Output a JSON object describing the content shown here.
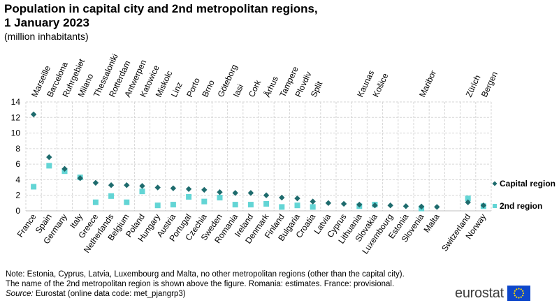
{
  "header": {
    "title_line1": "Population in capital city and 2nd metropolitan regions,",
    "title_line2": "1 January 2023",
    "subtitle": "(million inhabitants)"
  },
  "chart_data": {
    "type": "scatter",
    "categories": [
      "France",
      "Spain",
      "Germany",
      "Italy",
      "Greece",
      "Netherlands",
      "Belgium",
      "Poland",
      "Hungary",
      "Austria",
      "Portugal",
      "Czechia",
      "Sweden",
      "Romania",
      "Ireland",
      "Denmark",
      "Finland",
      "Bulgaria",
      "Croatia",
      "Latvia",
      "Cyprus",
      "Lithuania",
      "Slovakia",
      "Luxembourg",
      "Estonia",
      "Slovenia",
      "Malta",
      "",
      "Switzerland",
      "Norway"
    ],
    "second_region_names": [
      "Marseille",
      "Barcelona",
      "Ruhrgebiet",
      "Milano",
      "Thessaloniki",
      "Rotterdam",
      "Antwerpen",
      "Katowice",
      "Miskolc",
      "Linz",
      "Porto",
      "Brno",
      "Göteborg",
      "Iasi",
      "Cork",
      "Århus",
      "Tampere",
      "Plovdiv",
      "Split",
      "",
      "",
      "Kaunas",
      "Košice",
      "",
      "",
      "Maribor",
      "",
      "",
      "Zürich",
      "Bergen"
    ],
    "series": [
      {
        "name": "Capital region",
        "marker": "diamond",
        "color": "#1e6b6d",
        "values": [
          12.4,
          6.9,
          5.4,
          4.2,
          3.6,
          3.3,
          3.3,
          3.2,
          3.0,
          2.9,
          2.8,
          2.7,
          2.4,
          2.3,
          2.3,
          2.0,
          1.7,
          1.6,
          1.2,
          1.0,
          0.9,
          0.8,
          0.7,
          0.7,
          0.6,
          0.55,
          0.5,
          null,
          1.1,
          0.7
        ]
      },
      {
        "name": "2nd region",
        "marker": "square",
        "color": "#63d5d5",
        "values": [
          3.1,
          5.8,
          5.1,
          4.3,
          1.1,
          1.9,
          1.1,
          2.5,
          0.7,
          0.8,
          1.8,
          1.2,
          1.7,
          0.8,
          0.8,
          0.9,
          0.5,
          0.7,
          0.5,
          null,
          null,
          0.6,
          0.8,
          null,
          null,
          0.3,
          null,
          null,
          1.6,
          0.6
        ]
      }
    ],
    "ylim": [
      0,
      14
    ],
    "yticks": [
      0,
      2,
      4,
      6,
      8,
      10,
      12,
      14
    ],
    "grid": true,
    "legend": "right",
    "xlabel": "",
    "ylabel": ""
  },
  "notes": {
    "line1": "Note: Estonia, Cyprus, Latvia, Luxembourg and Malta, no other metropolitan regions (other than the capital city).",
    "line2": "The name of the 2nd metropolitan region is shown above the figure. Romania: estimates. France: provisional.",
    "source_label": "Source:",
    "source_text": " Eurostat (online data code: met_pjangrp3)"
  },
  "logo": {
    "text": "eurostat",
    "flag_color": "#0e47cb",
    "star_color": "#ffdd00",
    "flag_icon": "eu-flag-icon"
  }
}
